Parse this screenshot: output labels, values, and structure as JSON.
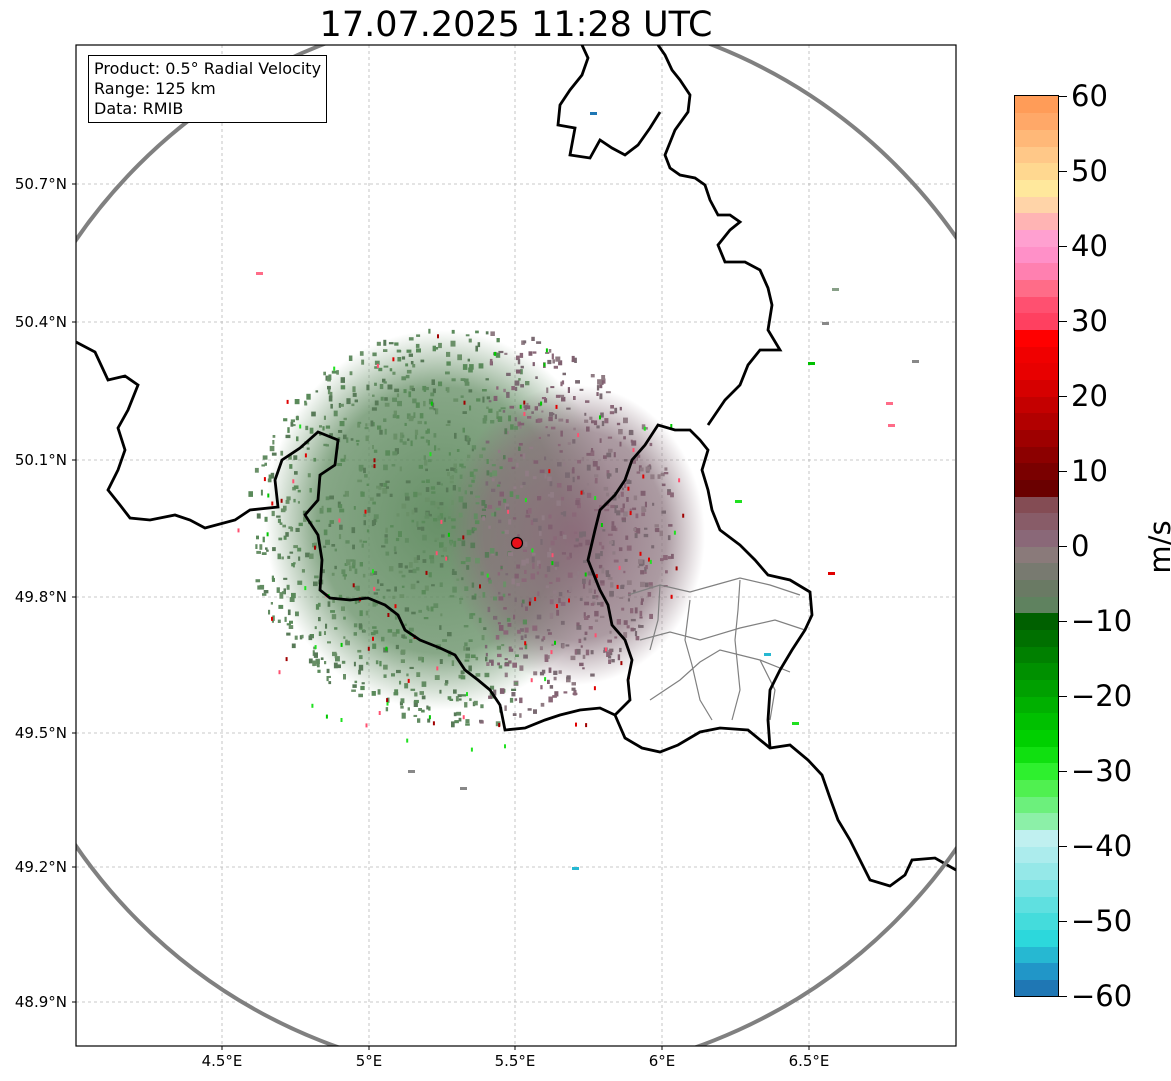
{
  "title": "17.07.2025 11:28 UTC",
  "info_box": {
    "product": "Product: 0.5° Radial Velocity",
    "range": "Range: 125 km",
    "data": "Data: RMIB"
  },
  "map": {
    "lat_labels": [
      "50.7°N",
      "50.4°N",
      "50.1°N",
      "49.8°N",
      "49.5°N",
      "49.2°N",
      "48.9°N"
    ],
    "lon_labels": [
      "4.5°E",
      "5°E",
      "5.5°E",
      "6°E",
      "6.5°E"
    ],
    "extent": {
      "lon_min": 4.0,
      "lon_max": 7.0,
      "lat_min": 48.8,
      "lat_max": 50.99
    },
    "radar_site": {
      "lon": 5.505,
      "lat": 49.914
    },
    "range_ring_km": 125,
    "colors": {
      "range_ring": "#808080",
      "border": "#000000",
      "admin": "#808080",
      "grid": "#b0b0b0",
      "radar": "#e8101a"
    }
  },
  "colorbar": {
    "unit": "m/s",
    "min": -60,
    "max": 60,
    "tick_values": [
      60,
      50,
      40,
      30,
      20,
      10,
      0,
      -10,
      -20,
      -30,
      -40,
      -50,
      -60
    ],
    "tick_labels": [
      "60",
      "50",
      "40",
      "30",
      "20",
      "10",
      "0",
      "−10",
      "−20",
      "−30",
      "−40",
      "−50",
      "−60"
    ],
    "colors": [
      "#1f77b4",
      "#2196c8",
      "#26b8d2",
      "#2cd8dc",
      "#44dcdc",
      "#5fe0e0",
      "#7ae4e4",
      "#95e8e8",
      "#aceced",
      "#c0f0f0",
      "#8cf0a8",
      "#6cf07c",
      "#50f050",
      "#2ef02e",
      "#10e010",
      "#00d000",
      "#00c000",
      "#00b000",
      "#00a000",
      "#009000",
      "#008000",
      "#007000",
      "#006000",
      "#5f825f",
      "#6a7a64",
      "#787a70",
      "#8a7a7a",
      "#8a6878",
      "#885c68",
      "#844c54",
      "#6a0000",
      "#7a0000",
      "#8c0000",
      "#9e0000",
      "#b20000",
      "#c40000",
      "#d60000",
      "#e80000",
      "#f00000",
      "#ff0000",
      "#ff4060",
      "#ff5070",
      "#ff6c88",
      "#ff80b0",
      "#ff90c8",
      "#ffa0d0",
      "#ffb4b4",
      "#ffd4a8",
      "#ffe89c",
      "#ffd890",
      "#ffc888",
      "#ffb878",
      "#ffa868",
      "#ff9c58"
    ]
  }
}
